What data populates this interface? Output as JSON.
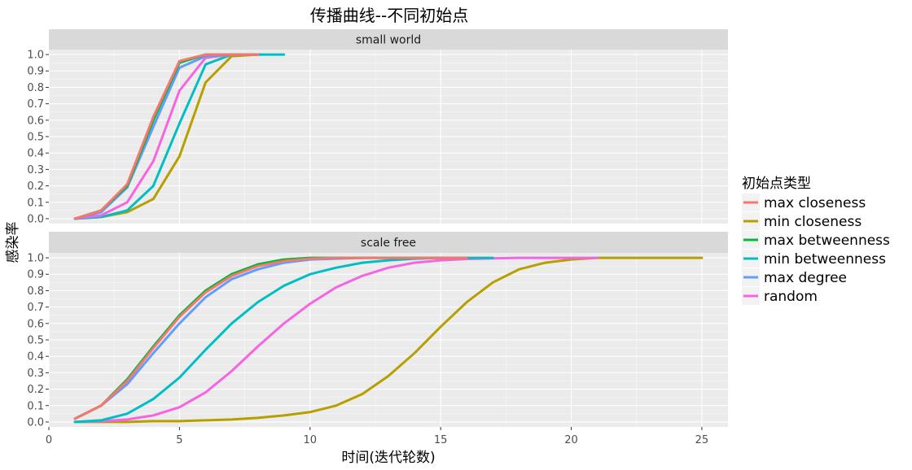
{
  "chart_data": {
    "type": "line",
    "title": "传播曲线--不同初始点",
    "xlabel": "时间(迭代轮数)",
    "ylabel": "感染率",
    "legend_title": "初始点类型",
    "legend_position": "right",
    "grid": true,
    "xlim": [
      0,
      26
    ],
    "x_ticks": [
      "0",
      "5",
      "10",
      "15",
      "20",
      "25"
    ],
    "y_ticks": [
      "0.0",
      "0.1",
      "0.2",
      "0.3",
      "0.4",
      "0.5",
      "0.6",
      "0.7",
      "0.8",
      "0.9",
      "1.0"
    ],
    "colors": {
      "max closeness": "#F8766D",
      "min closeness": "#B79F00",
      "max betweenness": "#00BA38",
      "min betweenness": "#00BFC4",
      "max degree": "#619CFF",
      "random": "#F564E3"
    },
    "panels": [
      {
        "strip": "small world",
        "ylim": [
          -0.03,
          1.03
        ],
        "series": [
          {
            "name": "min closeness",
            "x": [
              1,
              2,
              3,
              4,
              5,
              6,
              7,
              8
            ],
            "y": [
              0,
              0.01,
              0.04,
              0.12,
              0.38,
              0.83,
              0.99,
              1.0
            ]
          },
          {
            "name": "min betweenness",
            "x": [
              1,
              2,
              3,
              4,
              5,
              6,
              7,
              8,
              9
            ],
            "y": [
              0,
              0.01,
              0.05,
              0.2,
              0.58,
              0.94,
              1.0,
              1.0,
              1.0
            ]
          },
          {
            "name": "random",
            "x": [
              1,
              2,
              3,
              4,
              5,
              6,
              7,
              8
            ],
            "y": [
              0,
              0.02,
              0.1,
              0.35,
              0.78,
              0.98,
              1.0,
              1.0
            ]
          },
          {
            "name": "max degree",
            "x": [
              1,
              2,
              3,
              4,
              5,
              6,
              7,
              8
            ],
            "y": [
              0,
              0.04,
              0.19,
              0.56,
              0.92,
              0.99,
              1.0,
              1.0
            ]
          },
          {
            "name": "max betweenness",
            "x": [
              1,
              2,
              3,
              4,
              5,
              6,
              7,
              8
            ],
            "y": [
              0,
              0.05,
              0.2,
              0.6,
              0.95,
              1.0,
              1.0,
              1.0
            ]
          },
          {
            "name": "max closeness",
            "x": [
              1,
              2,
              3,
              4,
              5,
              6,
              7,
              8
            ],
            "y": [
              0,
              0.05,
              0.21,
              0.62,
              0.96,
              1.0,
              1.0,
              1.0
            ]
          }
        ]
      },
      {
        "strip": "scale free",
        "ylim": [
          -0.03,
          1.03
        ],
        "series": [
          {
            "name": "min closeness",
            "x": [
              1,
              2,
              3,
              4,
              5,
              6,
              7,
              8,
              9,
              10,
              11,
              12,
              13,
              14,
              15,
              16,
              17,
              18,
              19,
              20,
              21,
              22,
              23,
              24,
              25
            ],
            "y": [
              0,
              0,
              0,
              0.005,
              0.005,
              0.01,
              0.015,
              0.025,
              0.04,
              0.06,
              0.1,
              0.17,
              0.28,
              0.42,
              0.58,
              0.73,
              0.85,
              0.93,
              0.97,
              0.99,
              1.0,
              1.0,
              1.0,
              1.0,
              1.0
            ]
          },
          {
            "name": "random",
            "x": [
              1,
              2,
              3,
              4,
              5,
              6,
              7,
              8,
              9,
              10,
              11,
              12,
              13,
              14,
              15,
              16,
              17,
              18,
              19,
              20,
              21
            ],
            "y": [
              0,
              0.005,
              0.015,
              0.04,
              0.09,
              0.18,
              0.31,
              0.46,
              0.6,
              0.72,
              0.82,
              0.89,
              0.94,
              0.97,
              0.985,
              0.993,
              0.997,
              1.0,
              1.0,
              1.0,
              1.0
            ]
          },
          {
            "name": "min betweenness",
            "x": [
              1,
              2,
              3,
              4,
              5,
              6,
              7,
              8,
              9,
              10,
              11,
              12,
              13,
              14,
              15,
              16,
              17
            ],
            "y": [
              0,
              0.01,
              0.05,
              0.14,
              0.27,
              0.44,
              0.6,
              0.73,
              0.83,
              0.9,
              0.94,
              0.97,
              0.985,
              0.995,
              1.0,
              1.0,
              1.0
            ]
          },
          {
            "name": "max degree",
            "x": [
              1,
              2,
              3,
              4,
              5,
              6,
              7,
              8,
              9,
              10,
              11,
              12,
              13,
              14,
              15,
              16
            ],
            "y": [
              0.02,
              0.1,
              0.23,
              0.42,
              0.6,
              0.76,
              0.87,
              0.93,
              0.97,
              0.99,
              0.995,
              1.0,
              1.0,
              1.0,
              1.0,
              1.0
            ]
          },
          {
            "name": "max betweenness",
            "x": [
              1,
              2,
              3,
              4,
              5,
              6,
              7,
              8,
              9,
              10,
              11,
              12,
              13,
              14,
              15,
              16
            ],
            "y": [
              0.02,
              0.1,
              0.26,
              0.46,
              0.65,
              0.8,
              0.9,
              0.96,
              0.99,
              1.0,
              1.0,
              1.0,
              1.0,
              1.0,
              1.0,
              1.0
            ]
          },
          {
            "name": "max closeness",
            "x": [
              1,
              2,
              3,
              4,
              5,
              6,
              7,
              8,
              9,
              10,
              11,
              12,
              13,
              14,
              15,
              16
            ],
            "y": [
              0.02,
              0.1,
              0.25,
              0.45,
              0.64,
              0.79,
              0.89,
              0.95,
              0.98,
              0.995,
              1.0,
              1.0,
              1.0,
              1.0,
              1.0,
              1.0
            ]
          }
        ]
      }
    ],
    "legend_order": [
      "max closeness",
      "min closeness",
      "max betweenness",
      "min betweenness",
      "max degree",
      "random"
    ]
  }
}
